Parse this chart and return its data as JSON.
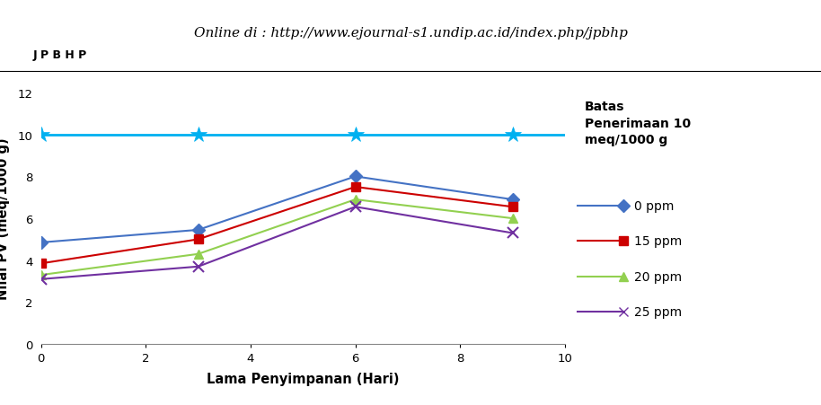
{
  "x": [
    0,
    3,
    6,
    9
  ],
  "series": {
    "0 ppm": [
      4.85,
      5.45,
      8.0,
      6.9
    ],
    "15 ppm": [
      3.85,
      5.0,
      7.5,
      6.55
    ],
    "20 ppm": [
      3.3,
      4.3,
      6.9,
      6.0
    ],
    "25 ppm": [
      3.1,
      3.7,
      6.55,
      5.3
    ]
  },
  "colors": {
    "0 ppm": "#4472C4",
    "15 ppm": "#CC0000",
    "20 ppm": "#92D050",
    "25 ppm": "#7030A0"
  },
  "markers": {
    "0 ppm": "D",
    "15 ppm": "s",
    "20 ppm": "^",
    "25 ppm": "x"
  },
  "series_order": [
    "0 ppm",
    "15 ppm",
    "20 ppm",
    "25 ppm"
  ],
  "batas_y": 10.0,
  "batas_color": "#00B0F0",
  "batas_label_line1": "Batas",
  "batas_label_line2": "Penerimaan 10",
  "batas_label_line3": "meq/1000 g",
  "xlabel": "Lama Penyimpanan (Hari)",
  "ylabel": "Nilai PV (meq/1000 g)",
  "xlim": [
    0,
    10
  ],
  "ylim": [
    0,
    12
  ],
  "yticks": [
    0,
    2,
    4,
    6,
    8,
    10,
    12
  ],
  "xticks": [
    0,
    2,
    4,
    6,
    8,
    10
  ],
  "header_text": "Online di : http://www.ejournal-s1.undip.ac.id/index.php/jpbhp",
  "header_left": "J P B H P",
  "background_color": "#FFFFFF",
  "figsize": [
    9.14,
    4.52
  ],
  "dpi": 100
}
